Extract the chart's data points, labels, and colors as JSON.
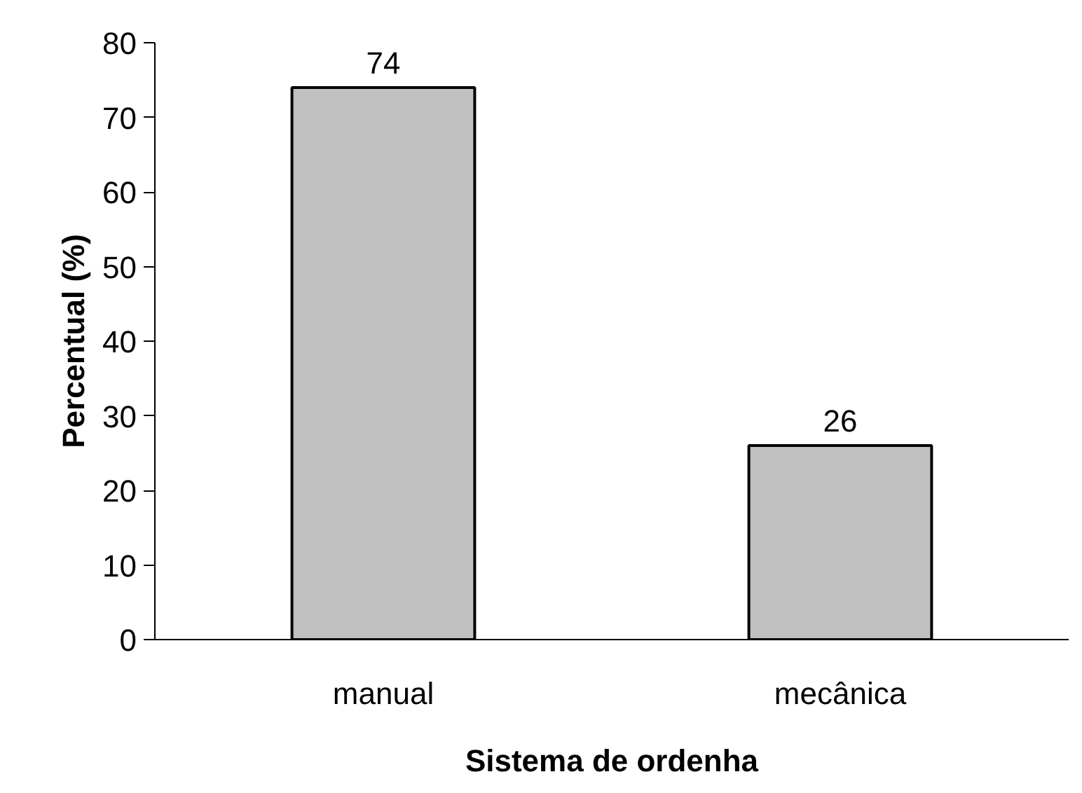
{
  "chart_data": {
    "type": "bar",
    "xlabel": "Sistema de ordenha",
    "ylabel": "Percentual (%)",
    "categories": [
      "manual",
      "mecânica"
    ],
    "values": [
      74,
      26
    ],
    "color": "#c0c0c0",
    "ylim": [
      0,
      80
    ],
    "yticks": [
      0,
      10,
      20,
      30,
      40,
      50,
      60,
      70,
      80
    ],
    "data_labels": true,
    "grid": false
  }
}
